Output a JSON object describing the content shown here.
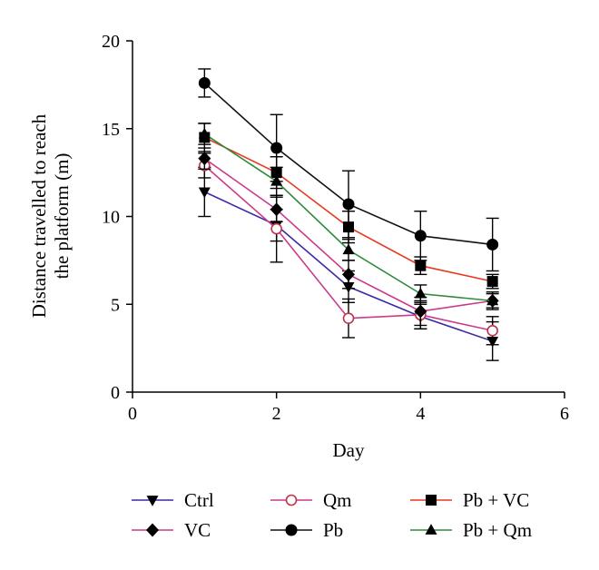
{
  "chart_data": {
    "type": "line",
    "title": "",
    "xlabel": "Day",
    "ylabel_lines": [
      "Distance travelled to reach",
      "the platform (m)"
    ],
    "xlim": [
      0,
      6
    ],
    "ylim": [
      0,
      20
    ],
    "x_ticks": [
      "0",
      "2",
      "4",
      "6"
    ],
    "y_ticks": [
      "0",
      "5",
      "10",
      "15",
      "20"
    ],
    "grid": false,
    "legend_position": "bottom",
    "x": [
      1,
      2,
      3,
      4,
      5
    ],
    "series": [
      {
        "name": "Ctrl",
        "color": "#3a2aa8",
        "marker": "triangle-down",
        "values": [
          11.4,
          9.5,
          6.0,
          4.3,
          2.9
        ],
        "errors": [
          1.4,
          0.9,
          0.9,
          0.7,
          1.1
        ]
      },
      {
        "name": "Qm",
        "color": "#cc3a8a",
        "marker": "circle-open",
        "values": [
          12.9,
          9.3,
          4.2,
          4.4,
          3.5
        ],
        "errors": [
          0.7,
          1.9,
          1.1,
          0.8,
          0.8
        ]
      },
      {
        "name": "Pb + VC",
        "color": "#e8381f",
        "marker": "square",
        "values": [
          14.5,
          12.5,
          9.4,
          7.2,
          6.3
        ],
        "errors": [
          0.8,
          0.9,
          0.9,
          0.5,
          0.4
        ]
      },
      {
        "name": "VC",
        "color": "#cc3a8a",
        "marker": "diamond",
        "values": [
          13.3,
          10.4,
          6.7,
          4.6,
          5.2
        ],
        "errors": [
          0.6,
          0.7,
          0.8,
          0.8,
          0.5
        ]
      },
      {
        "name": "Pb",
        "color": "#111111",
        "marker": "circle",
        "values": [
          17.6,
          13.9,
          10.7,
          8.9,
          8.4
        ],
        "errors": [
          0.8,
          1.9,
          1.9,
          1.4,
          1.5
        ]
      },
      {
        "name": "Pb + Qm",
        "color": "#2e8a3a",
        "marker": "triangle-up",
        "values": [
          14.7,
          12.0,
          8.1,
          5.6,
          5.2
        ],
        "errors": [
          0.6,
          0.8,
          0.6,
          0.5,
          0.4
        ]
      }
    ]
  }
}
